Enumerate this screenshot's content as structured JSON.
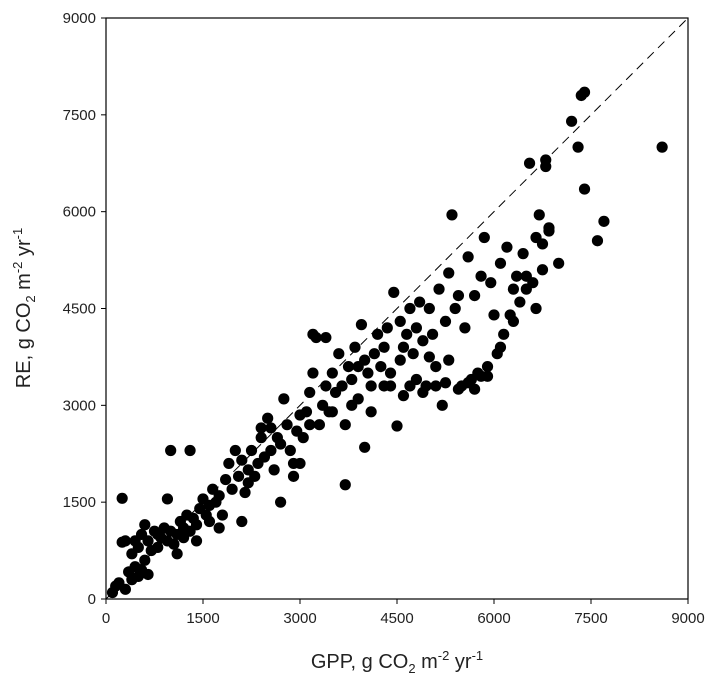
{
  "chart_data": {
    "type": "scatter",
    "xlabel": "GPP, g CO",
    "xlabel_sub": "2",
    "xlabel_mid": " m",
    "xlabel_sup1": "-2",
    "xlabel_end": " yr",
    "xlabel_sup2": "-1",
    "ylabel": "RE, g CO",
    "ylabel_sub": "2",
    "ylabel_mid": " m",
    "ylabel_sup1": "-2",
    "ylabel_end": " yr",
    "ylabel_sup2": "-1",
    "xlim": [
      0,
      9000
    ],
    "ylim": [
      0,
      9000
    ],
    "xticks": [
      "0",
      "1500",
      "3000",
      "4500",
      "6000",
      "7500",
      "9000"
    ],
    "yticks": [
      "0",
      "1500",
      "3000",
      "4500",
      "6000",
      "7500",
      "9000"
    ],
    "grid": false,
    "legend": false,
    "reference_line": "1:1 dashed",
    "marker_color": "#000000",
    "points": [
      [
        100,
        100
      ],
      [
        150,
        200
      ],
      [
        200,
        250
      ],
      [
        250,
        1560
      ],
      [
        300,
        900
      ],
      [
        250,
        880
      ],
      [
        350,
        420
      ],
      [
        400,
        700
      ],
      [
        450,
        500
      ],
      [
        500,
        350
      ],
      [
        550,
        450
      ],
      [
        600,
        600
      ],
      [
        650,
        380
      ],
      [
        700,
        750
      ],
      [
        400,
        300
      ],
      [
        500,
        800
      ],
      [
        600,
        1150
      ],
      [
        300,
        150
      ],
      [
        450,
        900
      ],
      [
        550,
        1000
      ],
      [
        650,
        900
      ],
      [
        750,
        1050
      ],
      [
        800,
        800
      ],
      [
        850,
        950
      ],
      [
        900,
        1100
      ],
      [
        950,
        900
      ],
      [
        1000,
        1050
      ],
      [
        1050,
        850
      ],
      [
        1100,
        1000
      ],
      [
        1150,
        1200
      ],
      [
        1200,
        1100
      ],
      [
        1250,
        1300
      ],
      [
        1300,
        1050
      ],
      [
        1350,
        1250
      ],
      [
        1400,
        1150
      ],
      [
        1450,
        1400
      ],
      [
        1500,
        1550
      ],
      [
        1550,
        1300
      ],
      [
        1600,
        1450
      ],
      [
        1650,
        1700
      ],
      [
        1700,
        1500
      ],
      [
        1750,
        1600
      ],
      [
        1800,
        1300
      ],
      [
        1850,
        1850
      ],
      [
        1900,
        2100
      ],
      [
        1950,
        1700
      ],
      [
        2000,
        2300
      ],
      [
        2050,
        1900
      ],
      [
        2100,
        2150
      ],
      [
        2150,
        1650
      ],
      [
        2200,
        2000
      ],
      [
        2250,
        2300
      ],
      [
        2300,
        1900
      ],
      [
        2350,
        2100
      ],
      [
        2400,
        2500
      ],
      [
        2450,
        2200
      ],
      [
        2500,
        2800
      ],
      [
        2550,
        2300
      ],
      [
        2600,
        2000
      ],
      [
        2650,
        2500
      ],
      [
        2700,
        2400
      ],
      [
        2750,
        3100
      ],
      [
        2800,
        2700
      ],
      [
        2850,
        2300
      ],
      [
        2900,
        2100
      ],
      [
        2950,
        2600
      ],
      [
        3000,
        2850
      ],
      [
        3050,
        2500
      ],
      [
        3100,
        2900
      ],
      [
        3150,
        3200
      ],
      [
        3200,
        3500
      ],
      [
        3250,
        4050
      ],
      [
        3300,
        2700
      ],
      [
        3350,
        3000
      ],
      [
        3400,
        3300
      ],
      [
        3450,
        2900
      ],
      [
        3500,
        3500
      ],
      [
        3550,
        3200
      ],
      [
        3600,
        3800
      ],
      [
        3650,
        3300
      ],
      [
        3700,
        1770
      ],
      [
        3750,
        3600
      ],
      [
        3800,
        3400
      ],
      [
        3850,
        3900
      ],
      [
        3900,
        3100
      ],
      [
        3950,
        4250
      ],
      [
        4000,
        3700
      ],
      [
        4050,
        3500
      ],
      [
        4100,
        2900
      ],
      [
        4150,
        3800
      ],
      [
        4200,
        4100
      ],
      [
        4250,
        3600
      ],
      [
        4300,
        3900
      ],
      [
        4350,
        4200
      ],
      [
        4400,
        3500
      ],
      [
        4450,
        4750
      ],
      [
        4500,
        2680
      ],
      [
        4550,
        4300
      ],
      [
        4600,
        3900
      ],
      [
        4650,
        4100
      ],
      [
        4700,
        4500
      ],
      [
        4750,
        3800
      ],
      [
        4800,
        4200
      ],
      [
        4850,
        4600
      ],
      [
        4900,
        4000
      ],
      [
        4950,
        3300
      ],
      [
        5000,
        4500
      ],
      [
        5050,
        4100
      ],
      [
        5100,
        3600
      ],
      [
        5150,
        4800
      ],
      [
        5200,
        3000
      ],
      [
        5250,
        4300
      ],
      [
        5300,
        5050
      ],
      [
        5350,
        5950
      ],
      [
        5400,
        4500
      ],
      [
        5450,
        4700
      ],
      [
        5500,
        3300
      ],
      [
        5550,
        4200
      ],
      [
        5600,
        5300
      ],
      [
        5650,
        3400
      ],
      [
        5700,
        4700
      ],
      [
        5750,
        3500
      ],
      [
        5800,
        5000
      ],
      [
        5850,
        5600
      ],
      [
        5900,
        3600
      ],
      [
        5950,
        4900
      ],
      [
        6000,
        4400
      ],
      [
        6050,
        3800
      ],
      [
        6100,
        5200
      ],
      [
        6150,
        4100
      ],
      [
        6200,
        5450
      ],
      [
        6250,
        4400
      ],
      [
        6300,
        4800
      ],
      [
        6350,
        5000
      ],
      [
        6400,
        4600
      ],
      [
        6450,
        5350
      ],
      [
        6500,
        5000
      ],
      [
        6550,
        6750
      ],
      [
        6600,
        4900
      ],
      [
        6650,
        5600
      ],
      [
        6700,
        5950
      ],
      [
        6750,
        5500
      ],
      [
        6800,
        6800
      ],
      [
        6850,
        5700
      ],
      [
        7200,
        7400
      ],
      [
        7300,
        7000
      ],
      [
        7350,
        7800
      ],
      [
        7400,
        7850
      ],
      [
        7400,
        6350
      ],
      [
        7600,
        5550
      ],
      [
        7700,
        5850
      ],
      [
        8600,
        7000
      ],
      [
        1000,
        2300
      ],
      [
        1300,
        2300
      ],
      [
        950,
        1550
      ],
      [
        800,
        1000
      ],
      [
        1100,
        700
      ],
      [
        1200,
        950
      ],
      [
        1400,
        900
      ],
      [
        1600,
        1200
      ],
      [
        1750,
        1100
      ],
      [
        2100,
        1200
      ],
      [
        2200,
        1800
      ],
      [
        2400,
        2650
      ],
      [
        2550,
        2650
      ],
      [
        2700,
        1500
      ],
      [
        2900,
        1900
      ],
      [
        3000,
        2100
      ],
      [
        3150,
        2700
      ],
      [
        3200,
        4100
      ],
      [
        3400,
        4050
      ],
      [
        3500,
        2900
      ],
      [
        3700,
        2700
      ],
      [
        3800,
        3000
      ],
      [
        3900,
        3600
      ],
      [
        4000,
        2350
      ],
      [
        4100,
        3300
      ],
      [
        4300,
        3300
      ],
      [
        4400,
        3300
      ],
      [
        4550,
        3700
      ],
      [
        4600,
        3150
      ],
      [
        4700,
        3300
      ],
      [
        4800,
        3400
      ],
      [
        4900,
        3200
      ],
      [
        5000,
        3750
      ],
      [
        5100,
        3300
      ],
      [
        5250,
        3350
      ],
      [
        5300,
        3700
      ],
      [
        5450,
        3250
      ],
      [
        5600,
        3350
      ],
      [
        5700,
        3250
      ],
      [
        5800,
        3450
      ],
      [
        5900,
        3450
      ],
      [
        6100,
        3900
      ],
      [
        6300,
        4300
      ],
      [
        6500,
        4800
      ],
      [
        6650,
        4500
      ],
      [
        6750,
        5100
      ],
      [
        6800,
        6700
      ],
      [
        6850,
        5750
      ],
      [
        7000,
        5200
      ]
    ]
  }
}
